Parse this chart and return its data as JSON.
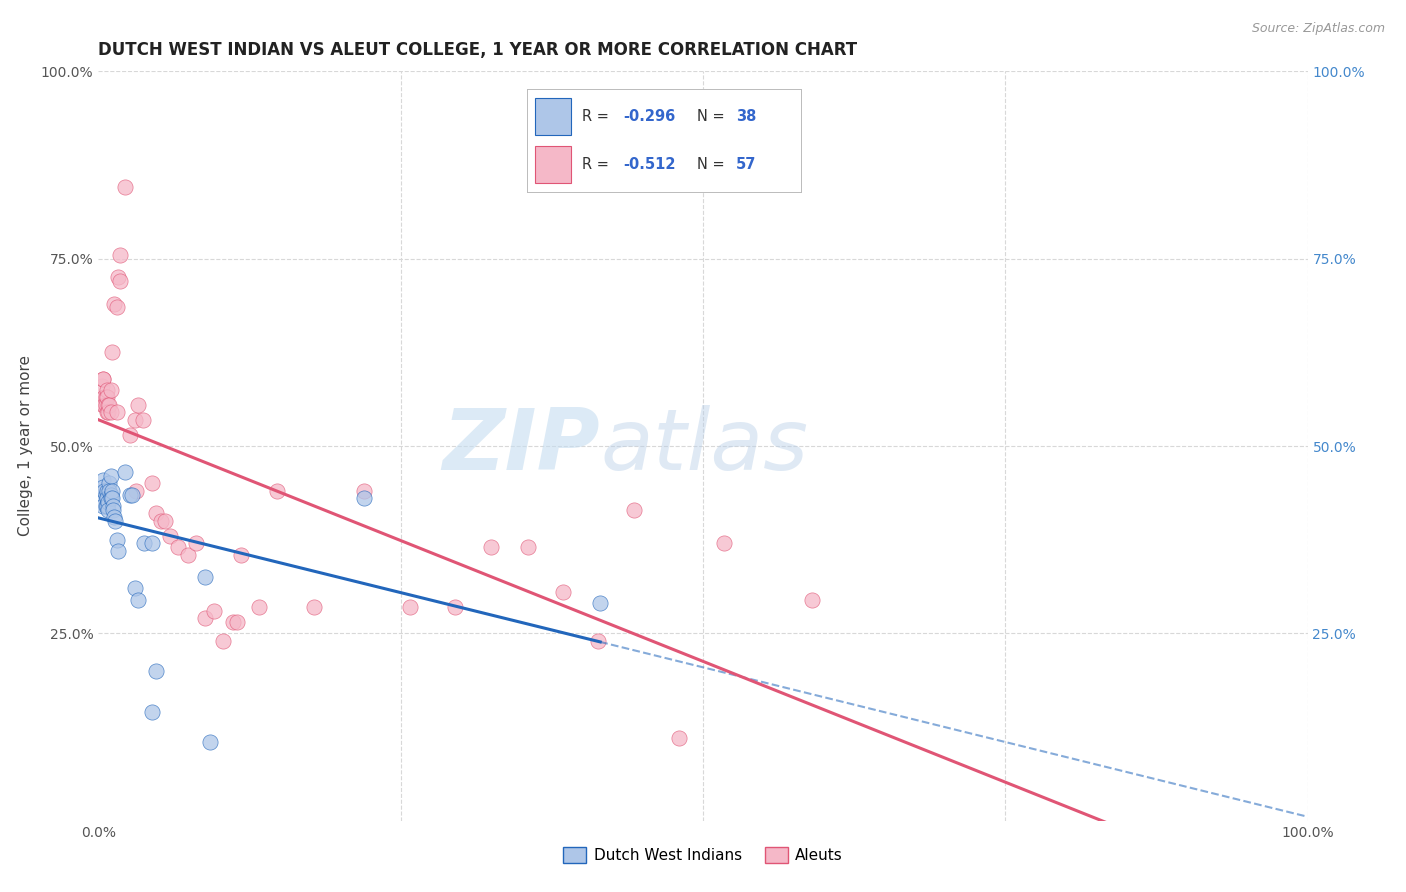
{
  "title": "DUTCH WEST INDIAN VS ALEUT COLLEGE, 1 YEAR OR MORE CORRELATION CHART",
  "source": "Source: ZipAtlas.com",
  "ylabel": "College, 1 year or more",
  "xlim": [
    0,
    1
  ],
  "ylim": [
    0,
    1
  ],
  "blue_R": -0.296,
  "blue_N": 38,
  "pink_R": -0.512,
  "pink_N": 57,
  "blue_color": "#aec6e8",
  "pink_color": "#f5b8c8",
  "blue_line_color": "#2266bb",
  "pink_line_color": "#e05575",
  "blue_scatter": [
    [
      0.004,
      0.435
    ],
    [
      0.004,
      0.455
    ],
    [
      0.004,
      0.445
    ],
    [
      0.004,
      0.42
    ],
    [
      0.005,
      0.44
    ],
    [
      0.006,
      0.435
    ],
    [
      0.006,
      0.42
    ],
    [
      0.007,
      0.44
    ],
    [
      0.007,
      0.43
    ],
    [
      0.007,
      0.42
    ],
    [
      0.008,
      0.425
    ],
    [
      0.008,
      0.415
    ],
    [
      0.009,
      0.45
    ],
    [
      0.009,
      0.44
    ],
    [
      0.01,
      0.435
    ],
    [
      0.01,
      0.43
    ],
    [
      0.01,
      0.46
    ],
    [
      0.011,
      0.44
    ],
    [
      0.011,
      0.43
    ],
    [
      0.012,
      0.42
    ],
    [
      0.012,
      0.415
    ],
    [
      0.013,
      0.405
    ],
    [
      0.014,
      0.4
    ],
    [
      0.015,
      0.375
    ],
    [
      0.016,
      0.36
    ],
    [
      0.022,
      0.465
    ],
    [
      0.026,
      0.435
    ],
    [
      0.028,
      0.435
    ],
    [
      0.03,
      0.31
    ],
    [
      0.033,
      0.295
    ],
    [
      0.038,
      0.37
    ],
    [
      0.044,
      0.37
    ],
    [
      0.044,
      0.145
    ],
    [
      0.048,
      0.2
    ],
    [
      0.088,
      0.325
    ],
    [
      0.092,
      0.105
    ],
    [
      0.22,
      0.43
    ],
    [
      0.415,
      0.29
    ]
  ],
  "pink_scatter": [
    [
      0.003,
      0.58
    ],
    [
      0.004,
      0.59
    ],
    [
      0.004,
      0.59
    ],
    [
      0.004,
      0.555
    ],
    [
      0.005,
      0.565
    ],
    [
      0.005,
      0.555
    ],
    [
      0.006,
      0.565
    ],
    [
      0.006,
      0.555
    ],
    [
      0.007,
      0.575
    ],
    [
      0.007,
      0.565
    ],
    [
      0.007,
      0.545
    ],
    [
      0.008,
      0.555
    ],
    [
      0.008,
      0.545
    ],
    [
      0.009,
      0.555
    ],
    [
      0.01,
      0.545
    ],
    [
      0.01,
      0.575
    ],
    [
      0.011,
      0.625
    ],
    [
      0.013,
      0.69
    ],
    [
      0.015,
      0.545
    ],
    [
      0.015,
      0.685
    ],
    [
      0.016,
      0.725
    ],
    [
      0.018,
      0.72
    ],
    [
      0.018,
      0.755
    ],
    [
      0.022,
      0.845
    ],
    [
      0.026,
      0.515
    ],
    [
      0.03,
      0.535
    ],
    [
      0.031,
      0.44
    ],
    [
      0.033,
      0.555
    ],
    [
      0.037,
      0.535
    ],
    [
      0.044,
      0.45
    ],
    [
      0.048,
      0.41
    ],
    [
      0.052,
      0.4
    ],
    [
      0.055,
      0.4
    ],
    [
      0.059,
      0.38
    ],
    [
      0.066,
      0.365
    ],
    [
      0.074,
      0.355
    ],
    [
      0.081,
      0.37
    ],
    [
      0.088,
      0.27
    ],
    [
      0.096,
      0.28
    ],
    [
      0.103,
      0.24
    ],
    [
      0.111,
      0.265
    ],
    [
      0.115,
      0.265
    ],
    [
      0.118,
      0.355
    ],
    [
      0.133,
      0.285
    ],
    [
      0.148,
      0.44
    ],
    [
      0.178,
      0.285
    ],
    [
      0.22,
      0.44
    ],
    [
      0.258,
      0.285
    ],
    [
      0.295,
      0.285
    ],
    [
      0.325,
      0.365
    ],
    [
      0.355,
      0.365
    ],
    [
      0.384,
      0.305
    ],
    [
      0.413,
      0.24
    ],
    [
      0.443,
      0.415
    ],
    [
      0.48,
      0.11
    ],
    [
      0.517,
      0.37
    ],
    [
      0.59,
      0.295
    ]
  ],
  "watermark_zip": "ZIP",
  "watermark_atlas": "atlas",
  "background_color": "#ffffff",
  "grid_color": "#d8d8d8",
  "legend_text_color": "#333333",
  "legend_val_color": "#3366cc",
  "right_tick_color": "#4488cc",
  "title_color": "#222222",
  "source_color": "#999999"
}
